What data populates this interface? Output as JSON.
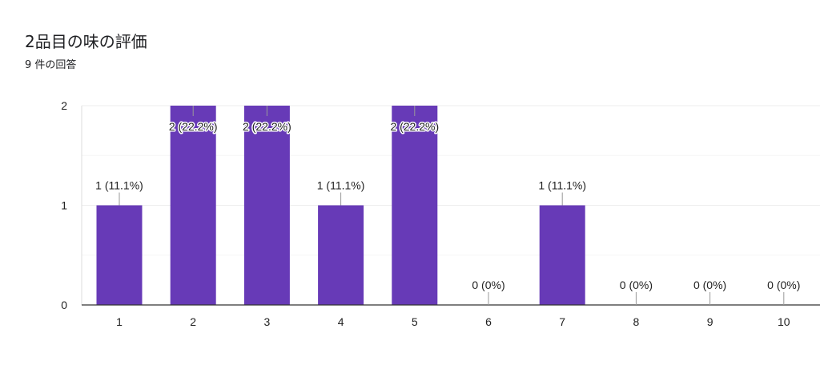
{
  "chart_data": {
    "type": "bar",
    "title": "2品目の味の評価",
    "subtitle": "9 件の回答",
    "categories": [
      "1",
      "2",
      "3",
      "4",
      "5",
      "6",
      "7",
      "8",
      "9",
      "10"
    ],
    "values": [
      1,
      2,
      2,
      1,
      2,
      0,
      1,
      0,
      0,
      0
    ],
    "data_labels": [
      "1 (11.1%)",
      "2 (22.2%)",
      "2 (22.2%)",
      "1 (11.1%)",
      "2 (22.2%)",
      "0 (0%)",
      "1 (11.1%)",
      "0 (0%)",
      "0 (0%)",
      "0 (0%)"
    ],
    "y_ticks": [
      "0",
      "1",
      "2"
    ],
    "ylim": [
      0,
      2
    ],
    "xlabel": "",
    "ylabel": "",
    "grid": true,
    "bar_color": "#673ab7",
    "grid_color": "#eeeeee",
    "minor_grid_color": "#f5f5f5"
  }
}
